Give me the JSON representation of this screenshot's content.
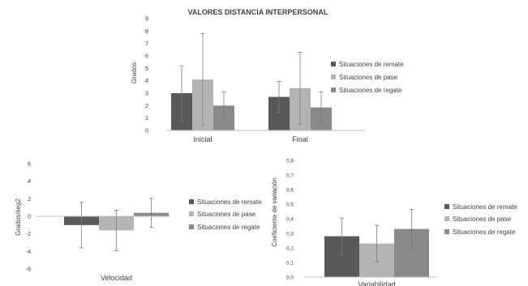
{
  "figure_title": "VALORES DISTANCIA INTERPERSONAL",
  "colors": {
    "remate": "#595959",
    "pase": "#b3b3b3",
    "regate": "#898989"
  },
  "chart_data": [
    {
      "type": "bar",
      "title": "VALORES DISTANCIA INTERPERSONAL",
      "xlabel": "",
      "ylabel": "Grados",
      "categories": [
        "Inicial",
        "Final"
      ],
      "ylim": [
        0,
        9
      ],
      "yticks": [
        "0",
        "1",
        "2",
        "3",
        "4",
        "5",
        "6",
        "7",
        "8",
        "9"
      ],
      "grid": false,
      "legend_position": "right",
      "series": [
        {
          "name": "Situaciones de remate",
          "values": [
            3.0,
            2.7
          ],
          "errors": [
            2.2,
            1.25
          ]
        },
        {
          "name": "Situaciones de pase",
          "values": [
            4.1,
            3.4
          ],
          "errors": [
            3.7,
            2.9
          ]
        },
        {
          "name": "Situaciones de regate",
          "values": [
            2.0,
            1.85
          ],
          "errors": [
            1.1,
            1.25
          ]
        }
      ]
    },
    {
      "type": "bar",
      "title": "",
      "xlabel": "",
      "ylabel": "Grados/seg2",
      "categories": [
        "Velocidad"
      ],
      "ylim": [
        -6,
        6
      ],
      "yticks": [
        "-6",
        "-4",
        "-2",
        "0",
        "2",
        "4",
        "6"
      ],
      "grid": false,
      "legend_position": "right",
      "series": [
        {
          "name": "Situaciones de remate",
          "values": [
            -1.0
          ],
          "errors": [
            2.6
          ]
        },
        {
          "name": "Situaciones de pase",
          "values": [
            -1.6
          ],
          "errors": [
            2.3
          ]
        },
        {
          "name": "Situaciones de regate",
          "values": [
            0.4
          ],
          "errors": [
            1.65
          ]
        }
      ]
    },
    {
      "type": "bar",
      "title": "",
      "xlabel": "",
      "ylabel": "Coeficiente de variación",
      "categories": [
        "Variabilidad"
      ],
      "ylim": [
        0,
        0.8
      ],
      "yticks": [
        "0,0",
        "0,1",
        "0,2",
        "0,3",
        "0,4",
        "0,5",
        "0,6",
        "0,7",
        "0,8"
      ],
      "grid": false,
      "legend_position": "right",
      "series": [
        {
          "name": "Situaciones de remate",
          "values": [
            0.28
          ],
          "errors": [
            0.125
          ]
        },
        {
          "name": "Situaciones de pase",
          "values": [
            0.23
          ],
          "errors": [
            0.125
          ]
        },
        {
          "name": "Situaciones de regate",
          "values": [
            0.33
          ],
          "errors": [
            0.135
          ]
        }
      ]
    }
  ]
}
